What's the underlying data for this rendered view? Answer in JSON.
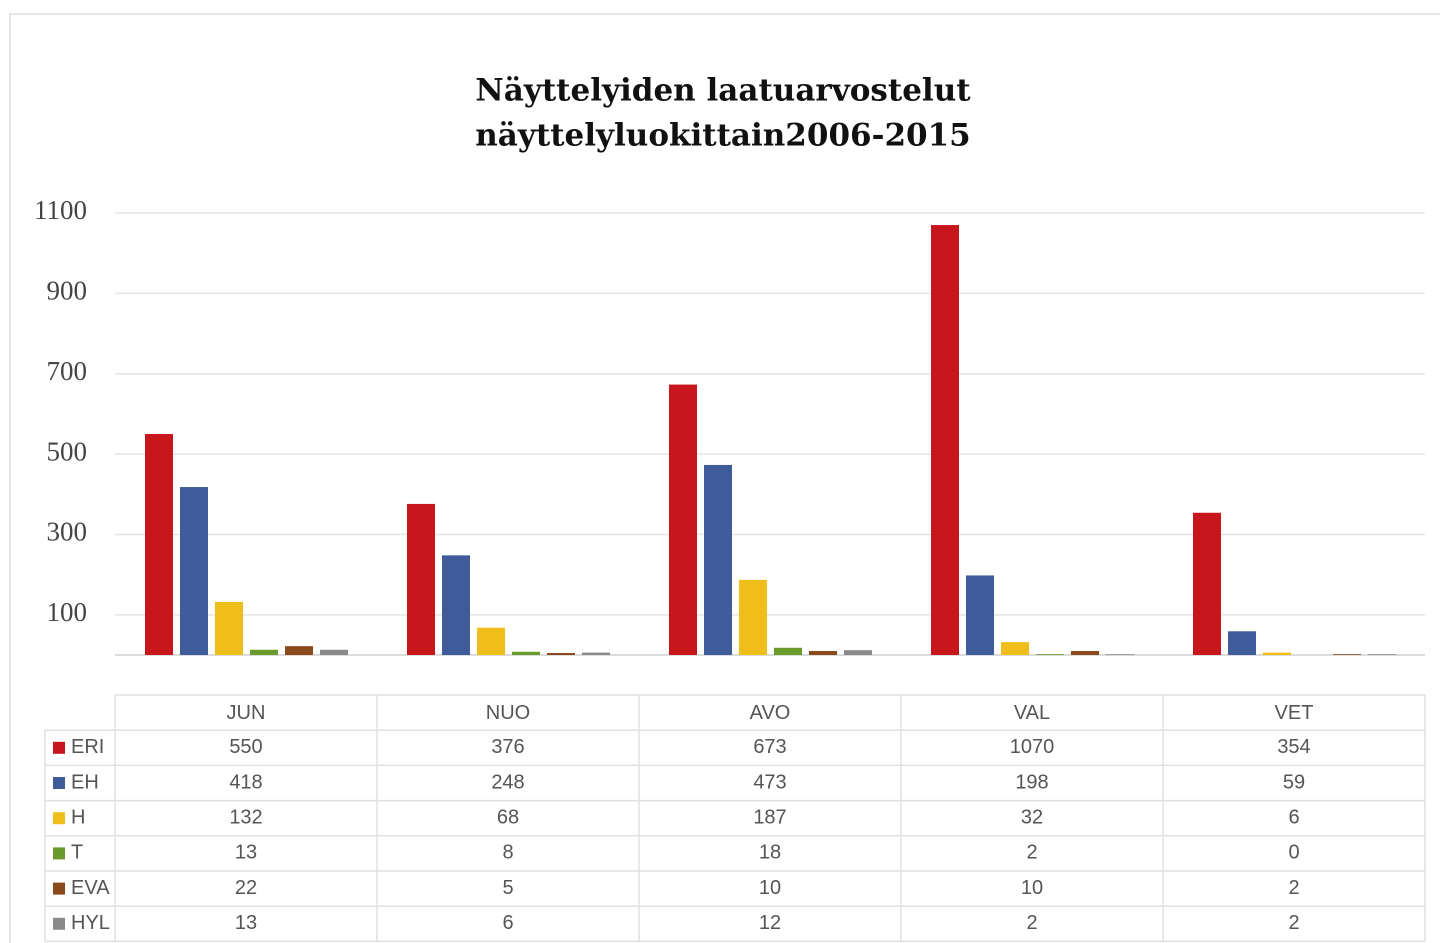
{
  "chart_data": {
    "type": "bar",
    "title": [
      "Näyttelyiden laatuarvostelut",
      "näyttelyluokittain2006-2015"
    ],
    "categories": [
      "JUN",
      "NUO",
      "AVO",
      "VAL",
      "VET"
    ],
    "series": [
      {
        "name": "ERI",
        "color": "#c8161d",
        "values": [
          550,
          376,
          673,
          1070,
          354
        ]
      },
      {
        "name": "EH",
        "color": "#3f5b9a",
        "values": [
          418,
          248,
          473,
          198,
          59
        ]
      },
      {
        "name": "H",
        "color": "#f0be1a",
        "values": [
          132,
          68,
          187,
          32,
          6
        ]
      },
      {
        "name": "T",
        "color": "#6a9a2a",
        "values": [
          13,
          8,
          18,
          2,
          0
        ]
      },
      {
        "name": "EVA",
        "color": "#8a4a1c",
        "values": [
          22,
          5,
          10,
          10,
          2
        ]
      },
      {
        "name": "HYL",
        "color": "#8a8a8a",
        "values": [
          13,
          6,
          12,
          2,
          2
        ]
      }
    ],
    "ylim": [
      0,
      1100
    ],
    "yticks": [
      100,
      300,
      500,
      700,
      900,
      1100
    ],
    "grid": true
  }
}
